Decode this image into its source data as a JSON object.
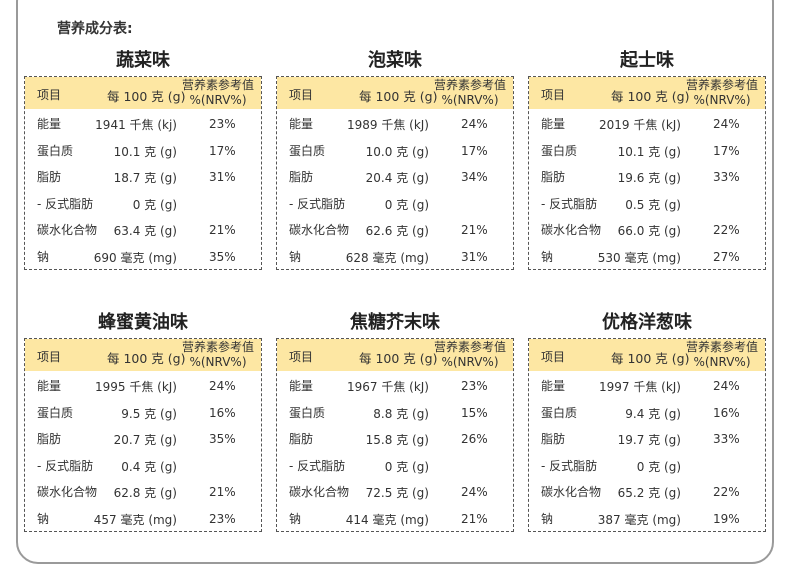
{
  "heading": "营养成分表:",
  "header": {
    "item": "项目",
    "per100": "每 100 克 (g)",
    "nrv_line1": "营养素参考值",
    "nrv_line2": "%(NRV%)"
  },
  "panels": [
    {
      "title": "蔬菜味",
      "rows": [
        {
          "name": "能量",
          "value": "1941 千焦 (kj)",
          "nrv": "23%"
        },
        {
          "name": "蛋白质",
          "value": "10.1 克 (g)",
          "nrv": "17%"
        },
        {
          "name": "脂肪",
          "value": "18.7 克 (g)",
          "nrv": "31%"
        },
        {
          "name": "- 反式脂肪",
          "value": "0 克 (g)",
          "nrv": ""
        },
        {
          "name": "碳水化合物",
          "value": "63.4 克 (g)",
          "nrv": "21%"
        },
        {
          "name": "钠",
          "value": "690 毫克 (mg)",
          "nrv": "35%"
        }
      ]
    },
    {
      "title": "泡菜味",
      "rows": [
        {
          "name": "能量",
          "value": "1989 千焦 (kJ)",
          "nrv": "24%"
        },
        {
          "name": "蛋白质",
          "value": "10.0 克 (g)",
          "nrv": "17%"
        },
        {
          "name": "脂肪",
          "value": "20.4 克 (g)",
          "nrv": "34%"
        },
        {
          "name": "- 反式脂肪",
          "value": "0 克 (g)",
          "nrv": ""
        },
        {
          "name": "碳水化合物",
          "value": "62.6 克 (g)",
          "nrv": "21%"
        },
        {
          "name": "钠",
          "value": "628 毫克 (mg)",
          "nrv": "31%"
        }
      ]
    },
    {
      "title": "起士味",
      "rows": [
        {
          "name": "能量",
          "value": "2019 千焦 (kJ)",
          "nrv": "24%"
        },
        {
          "name": "蛋白质",
          "value": "10.1 克 (g)",
          "nrv": "17%"
        },
        {
          "name": "脂肪",
          "value": "19.6 克 (g)",
          "nrv": "33%"
        },
        {
          "name": "- 反式脂肪",
          "value": "0.5 克 (g)",
          "nrv": ""
        },
        {
          "name": "碳水化合物",
          "value": "66.0 克 (g)",
          "nrv": "22%"
        },
        {
          "name": "钠",
          "value": "530 毫克 (mg)",
          "nrv": "27%"
        }
      ]
    },
    {
      "title": "蜂蜜黄油味",
      "rows": [
        {
          "name": "能量",
          "value": "1995 千焦 (kJ)",
          "nrv": "24%"
        },
        {
          "name": "蛋白质",
          "value": "9.5 克 (g)",
          "nrv": "16%"
        },
        {
          "name": "脂肪",
          "value": "20.7 克 (g)",
          "nrv": "35%"
        },
        {
          "name": "- 反式脂肪",
          "value": "0.4 克 (g)",
          "nrv": ""
        },
        {
          "name": "碳水化合物",
          "value": "62.8 克 (g)",
          "nrv": "21%"
        },
        {
          "name": "钠",
          "value": "457 毫克 (mg)",
          "nrv": "23%"
        }
      ]
    },
    {
      "title": "焦糖芥末味",
      "rows": [
        {
          "name": "能量",
          "value": "1967 千焦 (kJ)",
          "nrv": "23%"
        },
        {
          "name": "蛋白质",
          "value": "8.8 克 (g)",
          "nrv": "15%"
        },
        {
          "name": "脂肪",
          "value": "15.8 克 (g)",
          "nrv": "26%"
        },
        {
          "name": "- 反式脂肪",
          "value": "0 克 (g)",
          "nrv": ""
        },
        {
          "name": "碳水化合物",
          "value": "72.5 克 (g)",
          "nrv": "24%"
        },
        {
          "name": "钠",
          "value": "414 毫克 (mg)",
          "nrv": "21%"
        }
      ]
    },
    {
      "title": "优格洋葱味",
      "rows": [
        {
          "name": "能量",
          "value": "1997 千焦 (kJ)",
          "nrv": "24%"
        },
        {
          "name": "蛋白质",
          "value": "9.4 克 (g)",
          "nrv": "16%"
        },
        {
          "name": "脂肪",
          "value": "19.7 克 (g)",
          "nrv": "33%"
        },
        {
          "name": "- 反式脂肪",
          "value": "0 克 (g)",
          "nrv": ""
        },
        {
          "name": "碳水化合物",
          "value": "65.2 克 (g)",
          "nrv": "22%"
        },
        {
          "name": "钠",
          "value": "387 毫克 (mg)",
          "nrv": "19%"
        }
      ]
    }
  ]
}
